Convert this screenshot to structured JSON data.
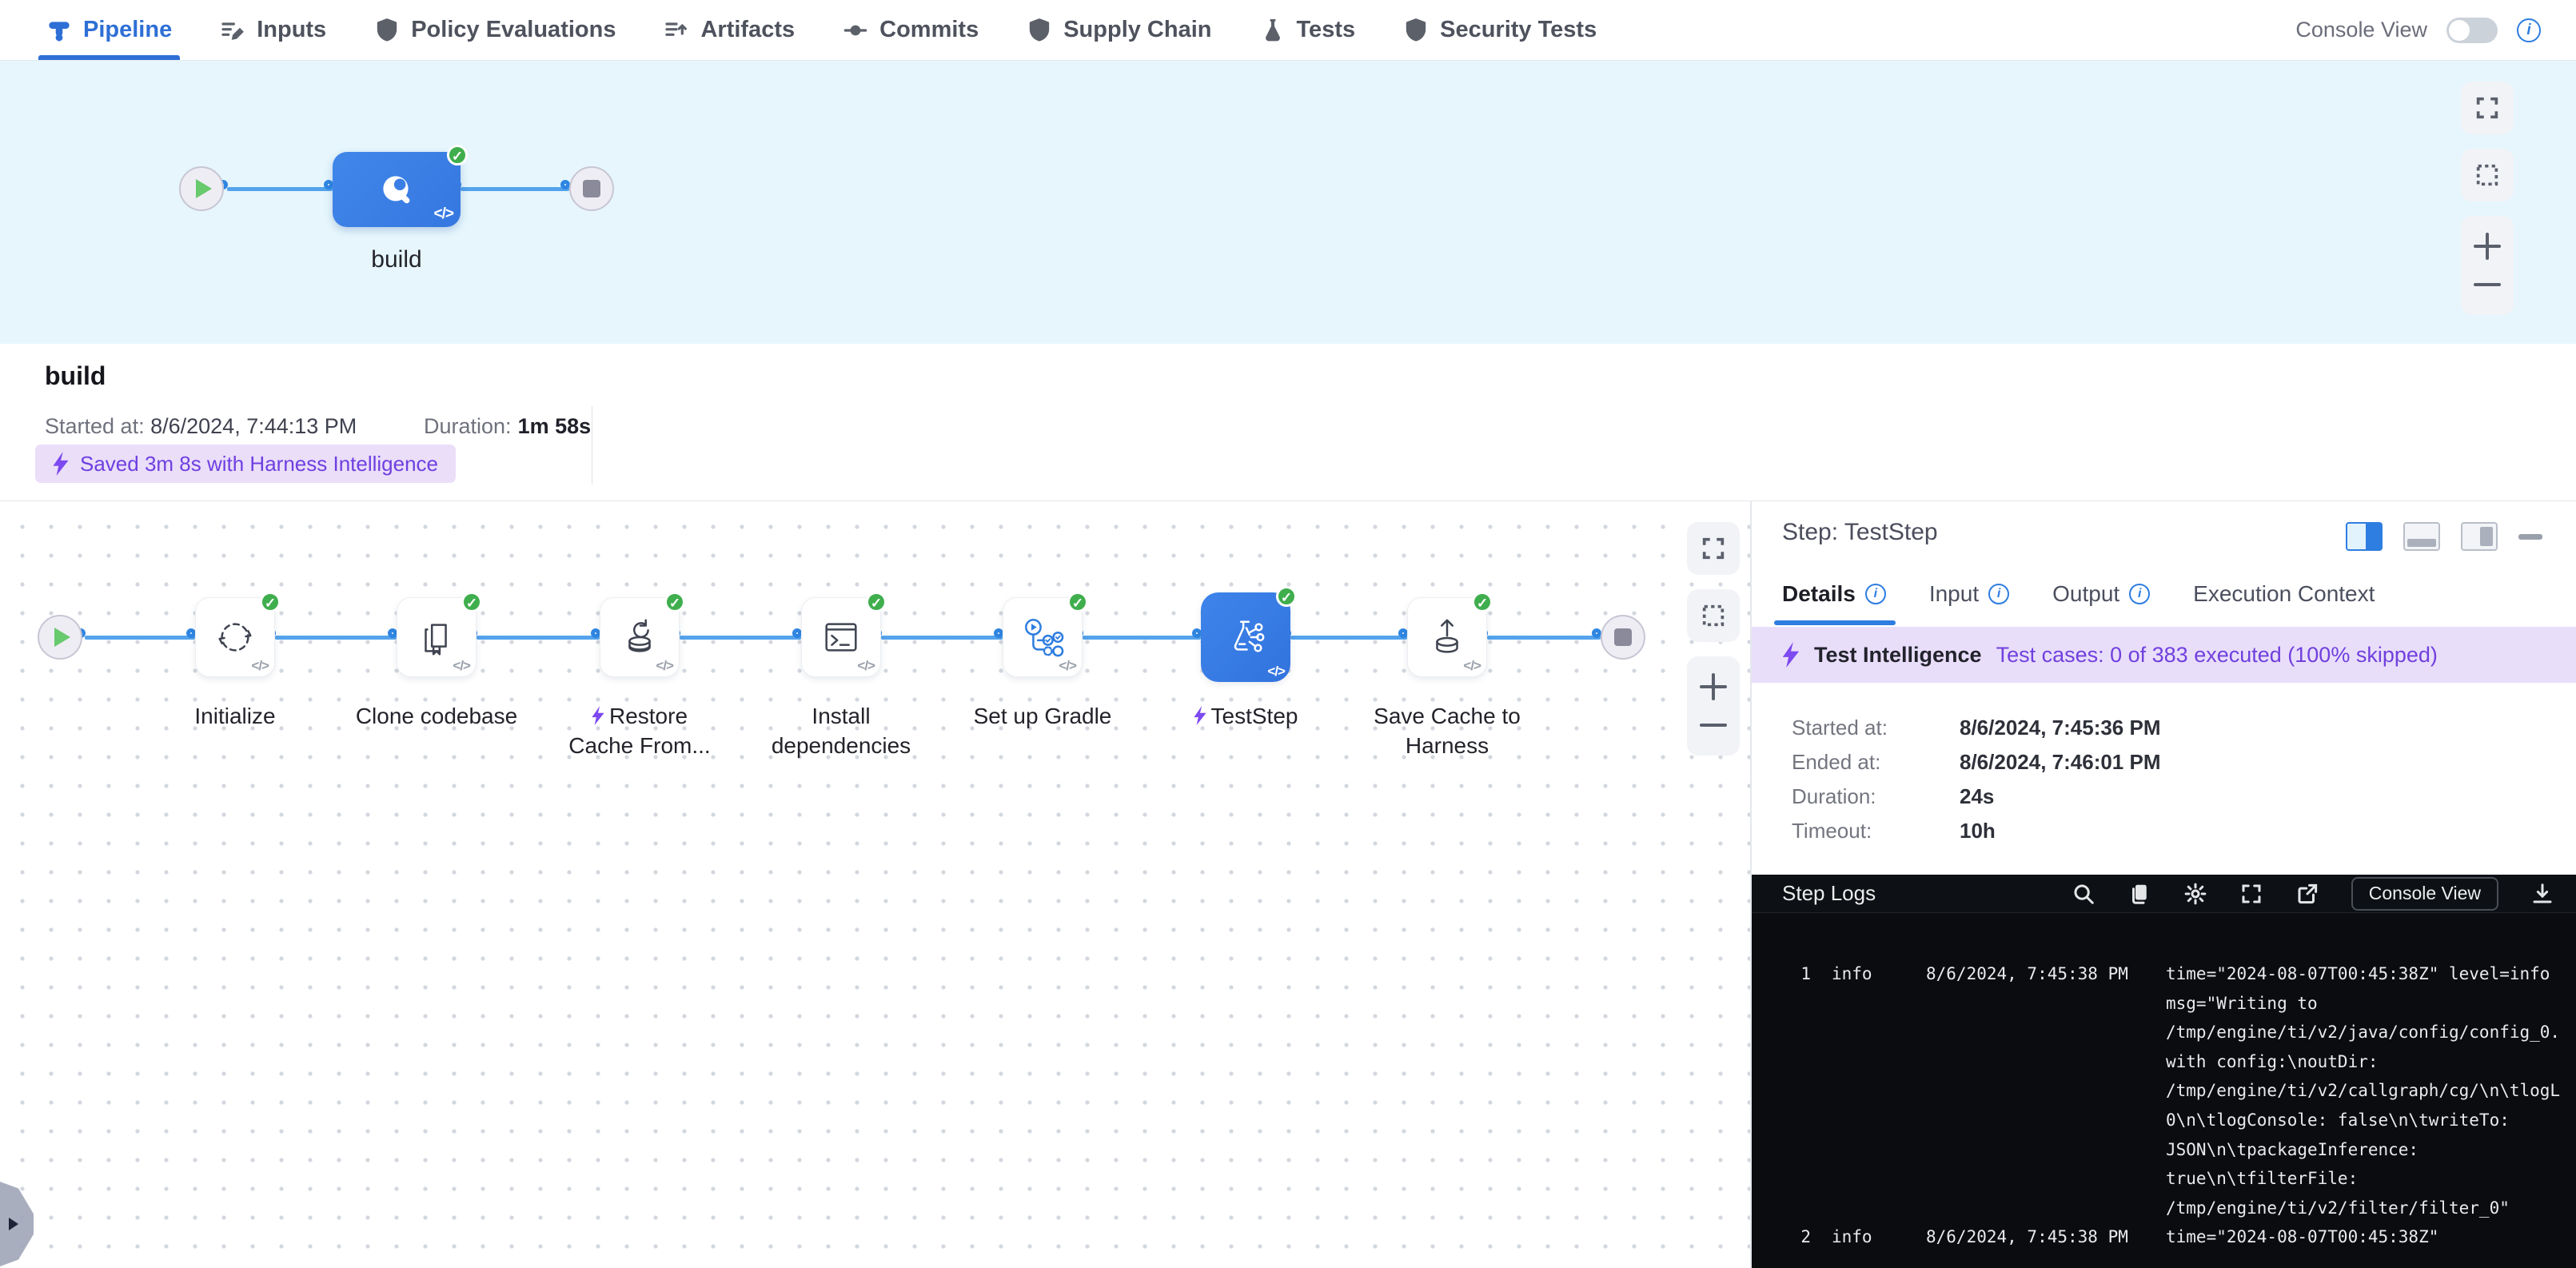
{
  "header": {
    "tabs": [
      {
        "label": "Pipeline"
      },
      {
        "label": "Inputs"
      },
      {
        "label": "Policy Evaluations"
      },
      {
        "label": "Artifacts"
      },
      {
        "label": "Commits"
      },
      {
        "label": "Supply Chain"
      },
      {
        "label": "Tests"
      },
      {
        "label": "Security Tests"
      }
    ],
    "console_view_label": "Console View"
  },
  "stage_graph": {
    "stage_label": "build"
  },
  "misc": {
    "code_glyph": "</>"
  },
  "build_summary": {
    "title": "build",
    "started_label": "Started at:",
    "started_value": "8/6/2024, 7:44:13 PM",
    "duration_label": "Duration:",
    "duration_value": "1m 58s",
    "savings_badge": "Saved 3m 8s with Harness Intelligence"
  },
  "step_graph": {
    "steps": [
      {
        "label": "Initialize"
      },
      {
        "label": "Clone codebase"
      },
      {
        "label": "Restore Cache From..."
      },
      {
        "label": "Install dependencies"
      },
      {
        "label": "Set up Gradle"
      },
      {
        "label": "TestStep"
      },
      {
        "label": "Save Cache to Harness"
      }
    ]
  },
  "step_panel": {
    "title": "Step: TestStep",
    "tabs": {
      "details": "Details",
      "input": "Input",
      "output": "Output",
      "execution_context": "Execution Context"
    },
    "ti_banner": {
      "name": "Test Intelligence",
      "cases_text": "Test cases:  0 of 383 executed (100% skipped)"
    },
    "details": {
      "started_label": "Started at:",
      "started_value": "8/6/2024, 7:45:36 PM",
      "ended_label": "Ended at:",
      "ended_value": "8/6/2024, 7:46:01 PM",
      "duration_label": "Duration:",
      "duration_value": "24s",
      "timeout_label": "Timeout:",
      "timeout_value": "10h"
    },
    "logs": {
      "title": "Step Logs",
      "console_view_button": "Console View",
      "entries": [
        {
          "num": "1",
          "level": "info",
          "time": "8/6/2024, 7:45:38 PM",
          "message": "time=\"2024-08-07T00:45:38Z\" level=info\nmsg=\"Writing to\n/tmp/engine/ti/v2/java/config/config_0.\nwith config:\\noutDir:\n/tmp/engine/ti/v2/callgraph/cg/\\n\\tlogL\n0\\n\\tlogConsole: false\\n\\twriteTo:\nJSON\\n\\tpackageInference:\ntrue\\n\\tfilterFile:\n/tmp/engine/ti/v2/filter/filter_0\""
        },
        {
          "num": "2",
          "level": "info",
          "time": "8/6/2024, 7:45:38 PM",
          "message": "time=\"2024-08-07T00:45:38Z\""
        }
      ]
    }
  },
  "colors": {
    "accent_blue": "#2e6fd6",
    "node_blue": "#3b7fe6",
    "purple": "#6f3fe0",
    "purple_bg": "#e9defa",
    "green": "#3fae4d",
    "log_bg": "#0a0c10",
    "canvas_bg": "#e6f6fc"
  }
}
